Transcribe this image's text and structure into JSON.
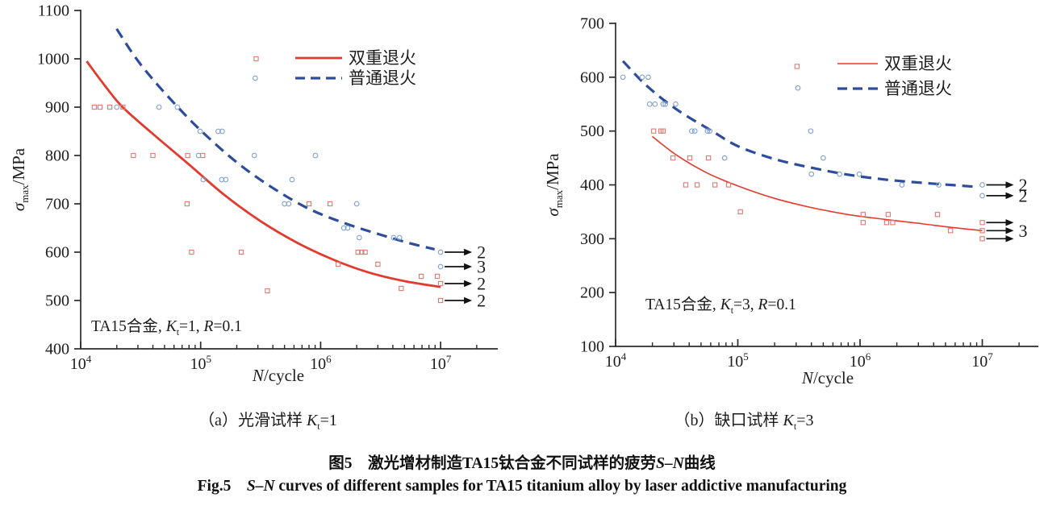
{
  "figure": {
    "caption_cn": {
      "prefix": "图5　激光增材制造TA15钛合金不同试样的疲劳",
      "italic": "S–N",
      "suffix": "曲线"
    },
    "caption_en": {
      "prefix": "Fig.5　",
      "italic": "S–N",
      "suffix": " curves of different samples for TA15 titanium alloy by laser addictive manufacturing"
    }
  },
  "colors": {
    "red": "#e23a2e",
    "blue": "#2e4c9c",
    "red_marker": "#e0796f",
    "blue_marker": "#7fa0cf",
    "axis": "#2b2b2b",
    "text": "#1c1c1c",
    "arrow": "#111111",
    "background": "#ffffff"
  },
  "chart_data": [
    {
      "id": "a",
      "type": "scatter",
      "xlabel": {
        "italic": "N",
        "rest": "/cycle"
      },
      "ylabel": {
        "sigma": "σ",
        "sub": "max",
        "rest": "/MPa"
      },
      "x_axis": {
        "scale": "log",
        "decades": [
          4,
          5,
          6,
          7
        ],
        "min": 10000,
        "max": 30000000
      },
      "y_axis": {
        "min": 400,
        "max": 1100,
        "step": 100,
        "unit": "MPa"
      },
      "annotation": {
        "alloy": "TA15合金",
        "kt": "1",
        "r": "0.1"
      },
      "caption": {
        "paren": "（a）",
        "name": "光滑试样",
        "kt": "1"
      },
      "series": [
        {
          "name": "双重退火",
          "marker": "square",
          "line": "solid",
          "color_key": "red",
          "points": [
            [
              13000,
              900
            ],
            [
              14500,
              900
            ],
            [
              17500,
              900
            ],
            [
              22500,
              900
            ],
            [
              27500,
              800
            ],
            [
              40000,
              800
            ],
            [
              78000,
              800
            ],
            [
              104000,
              800
            ],
            [
              77000,
              700
            ],
            [
              800000,
              700
            ],
            [
              1200000,
              700
            ],
            [
              290000,
              1000
            ],
            [
              84000,
              600
            ],
            [
              218000,
              600
            ],
            [
              2050000,
              600
            ],
            [
              2200000,
              600
            ],
            [
              2350000,
              600
            ],
            [
              360000,
              520
            ],
            [
              1400000,
              575
            ],
            [
              3000000,
              575
            ],
            [
              4700000,
              525
            ],
            [
              6900000,
              550
            ],
            [
              9400000,
              550
            ]
          ],
          "curve_log_sigma": [
            [
              4.05,
              995
            ],
            [
              4.2,
              945
            ],
            [
              4.35,
              900
            ],
            [
              4.6,
              845
            ],
            [
              4.9,
              782
            ],
            [
              5.2,
              718
            ],
            [
              5.5,
              664
            ],
            [
              5.8,
              620
            ],
            [
              6.1,
              585
            ],
            [
              6.4,
              558
            ],
            [
              6.7,
              540
            ],
            [
              7.0,
              528
            ]
          ],
          "runouts": [
            {
              "n": 10000000,
              "sigma": 535,
              "label": "2"
            },
            {
              "n": 10000000,
              "sigma": 500,
              "label": "2"
            }
          ]
        },
        {
          "name": "普通退火",
          "marker": "circle",
          "line": "dashed",
          "color_key": "blue",
          "points": [
            [
              20000,
              900
            ],
            [
              45000,
              900
            ],
            [
              64000,
              900
            ],
            [
              285000,
              960
            ],
            [
              99000,
              850
            ],
            [
              140000,
              850
            ],
            [
              151000,
              850
            ],
            [
              96000,
              800
            ],
            [
              280000,
              800
            ],
            [
              905000,
              800
            ],
            [
              105000,
              750
            ],
            [
              150000,
              750
            ],
            [
              162000,
              750
            ],
            [
              578000,
              750
            ],
            [
              500000,
              700
            ],
            [
              542000,
              700
            ],
            [
              2000000,
              700
            ],
            [
              1560000,
              650
            ],
            [
              1680000,
              650
            ],
            [
              2100000,
              630
            ],
            [
              4050000,
              630
            ],
            [
              4550000,
              630
            ]
          ],
          "curve_log_sigma": [
            [
              4.3,
              1062
            ],
            [
              4.45,
              1005
            ],
            [
              4.6,
              958
            ],
            [
              4.81,
              900
            ],
            [
              5.0,
              852
            ],
            [
              5.3,
              786
            ],
            [
              5.6,
              733
            ],
            [
              5.9,
              690
            ],
            [
              6.2,
              660
            ],
            [
              6.5,
              636
            ],
            [
              6.75,
              618
            ],
            [
              6.95,
              606
            ]
          ],
          "runouts": [
            {
              "n": 10000000,
              "sigma": 600,
              "label": "2"
            },
            {
              "n": 10000000,
              "sigma": 570,
              "label": "3"
            }
          ]
        }
      ]
    },
    {
      "id": "b",
      "type": "scatter",
      "xlabel": {
        "italic": "N",
        "rest": "/cycle"
      },
      "ylabel": {
        "sigma": "σ",
        "sub": "max",
        "rest": "/MPa"
      },
      "x_axis": {
        "scale": "log",
        "decades": [
          4,
          5,
          6,
          7
        ],
        "min": 10000,
        "max": 30000000
      },
      "y_axis": {
        "min": 100,
        "max": 700,
        "step": 100,
        "unit": "MPa"
      },
      "annotation": {
        "alloy": "TA15合金",
        "kt": "3",
        "r": "0.1"
      },
      "caption": {
        "paren": "（b）",
        "name": "缺口试样",
        "kt": "3"
      },
      "series": [
        {
          "name": "双重退火",
          "marker": "square",
          "line": "solid",
          "color_key": "red",
          "points": [
            [
              20500,
              500
            ],
            [
              23500,
              500
            ],
            [
              24500,
              500
            ],
            [
              29500,
              450
            ],
            [
              40500,
              450
            ],
            [
              57500,
              450
            ],
            [
              37500,
              400
            ],
            [
              46500,
              400
            ],
            [
              65000,
              400
            ],
            [
              84000,
              400
            ],
            [
              105000,
              350
            ],
            [
              305000,
              620
            ],
            [
              1060000,
              345
            ],
            [
              1060000,
              330
            ],
            [
              1700000,
              345
            ],
            [
              1650000,
              330
            ],
            [
              1850000,
              330
            ],
            [
              4300000,
              345
            ],
            [
              5500000,
              315
            ]
          ],
          "curve_log_sigma": [
            [
              4.3,
              490
            ],
            [
              4.5,
              455
            ],
            [
              4.75,
              422
            ],
            [
              5.0,
              398
            ],
            [
              5.3,
              375
            ],
            [
              5.6,
              358
            ],
            [
              5.9,
              345
            ],
            [
              6.2,
              336
            ],
            [
              6.5,
              328
            ],
            [
              6.75,
              321
            ],
            [
              7.0,
              315
            ]
          ],
          "runouts": [
            {
              "n": 10000000,
              "sigma": 330,
              "label": ""
            },
            {
              "n": 10000000,
              "sigma": 315,
              "label": "3"
            },
            {
              "n": 10000000,
              "sigma": 300,
              "label": ""
            }
          ]
        },
        {
          "name": "普通退火",
          "marker": "circle",
          "line": "dashed",
          "color_key": "blue",
          "points": [
            [
              11500,
              600
            ],
            [
              16500,
              600
            ],
            [
              18500,
              600
            ],
            [
              19000,
              550
            ],
            [
              21000,
              550
            ],
            [
              24500,
              550
            ],
            [
              25500,
              550
            ],
            [
              31000,
              550
            ],
            [
              42000,
              500
            ],
            [
              44500,
              500
            ],
            [
              56500,
              500
            ],
            [
              59000,
              500
            ],
            [
              310000,
              580
            ],
            [
              395000,
              500
            ],
            [
              78000,
              450
            ],
            [
              500000,
              450
            ],
            [
              400000,
              420
            ],
            [
              680000,
              420
            ],
            [
              985000,
              420
            ],
            [
              2200000,
              400
            ],
            [
              4400000,
              400
            ]
          ],
          "curve_log_sigma": [
            [
              4.06,
              630
            ],
            [
              4.25,
              585
            ],
            [
              4.5,
              540
            ],
            [
              4.79,
              500
            ],
            [
              5.0,
              472
            ],
            [
              5.3,
              448
            ],
            [
              5.6,
              432
            ],
            [
              5.9,
              419
            ],
            [
              6.2,
              410
            ],
            [
              6.5,
              404
            ],
            [
              6.8,
              399
            ],
            [
              6.97,
              396
            ]
          ],
          "runouts": [
            {
              "n": 10000000,
              "sigma": 400,
              "label": "2"
            },
            {
              "n": 10000000,
              "sigma": 380,
              "label": "2"
            }
          ]
        }
      ]
    }
  ]
}
